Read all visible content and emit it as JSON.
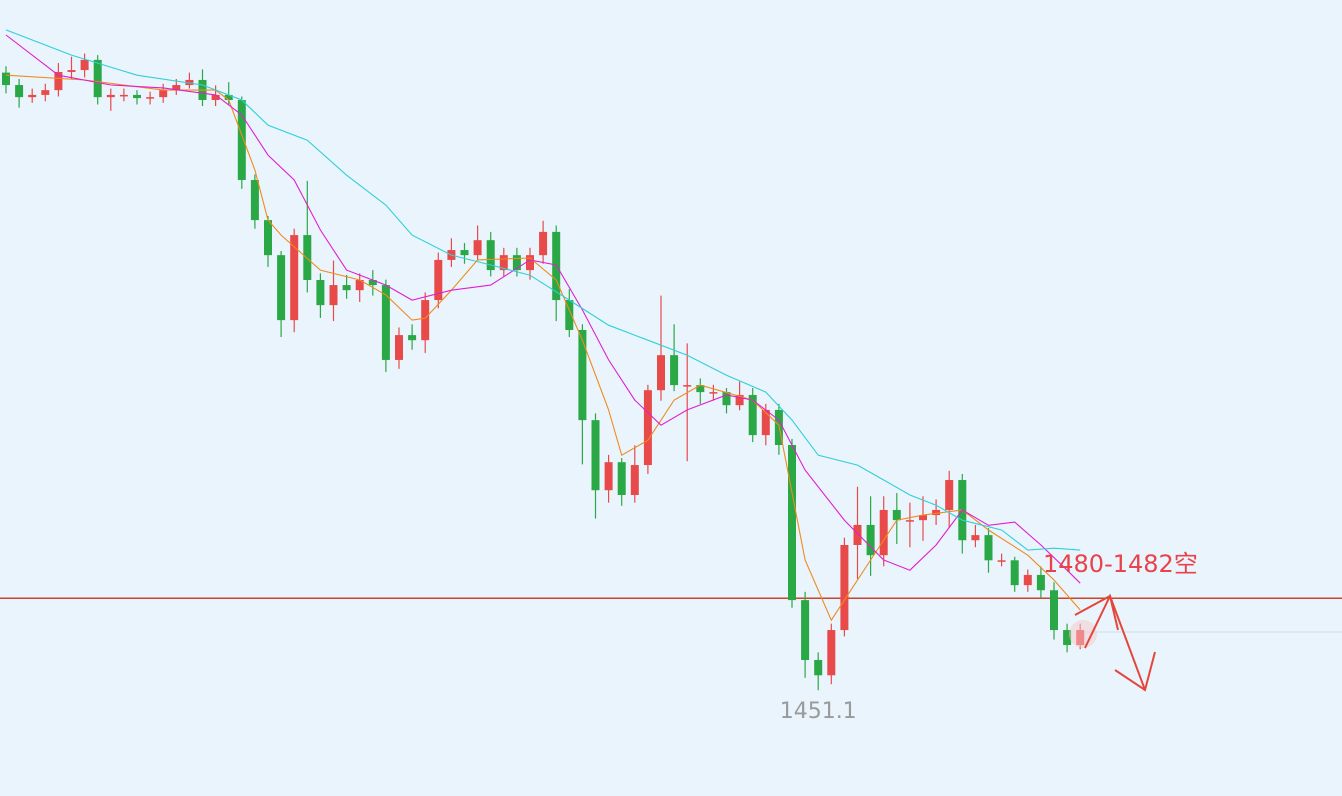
{
  "chart_data": {
    "type": "candlestick",
    "up_color": "#e84a4a",
    "down_color": "#2aa845",
    "ylim": [
      1417.9,
      1667.8
    ],
    "candles": {
      "open": [
        1645.0,
        1641.1,
        1637.3,
        1638.0,
        1639.5,
        1645.2,
        1645.8,
        1649.0,
        1637.3,
        1638.0,
        1638.0,
        1637.0,
        1637.3,
        1639.5,
        1641.1,
        1642.7,
        1636.4,
        1638.0,
        1636.4,
        1611.3,
        1598.7,
        1587.7,
        1567.3,
        1594.0,
        1579.9,
        1572.0,
        1578.3,
        1576.7,
        1579.9,
        1578.3,
        1554.8,
        1562.6,
        1561.0,
        1573.6,
        1586.2,
        1589.3,
        1587.7,
        1592.4,
        1583.0,
        1587.7,
        1583.0,
        1587.7,
        1595.0,
        1573.6,
        1564.2,
        1535.9,
        1513.9,
        1522.7,
        1512.4,
        1521.8,
        1545.3,
        1556.3,
        1546.9,
        1546.9,
        1544.7,
        1544.7,
        1540.6,
        1543.8,
        1531.2,
        1539.1,
        1528.1,
        1479.4,
        1460.6,
        1455.8,
        1470.0,
        1496.7,
        1503.0,
        1493.5,
        1507.7,
        1504.5,
        1504.5,
        1506.1,
        1507.7,
        1517.1,
        1498.2,
        1499.8,
        1491.9,
        1491.9,
        1484.1,
        1487.3,
        1482.5,
        1470.0,
        1465.3
      ],
      "close": [
        1641.1,
        1637.3,
        1638.0,
        1639.5,
        1645.2,
        1645.8,
        1649.0,
        1637.3,
        1638.0,
        1638.0,
        1637.0,
        1637.3,
        1639.5,
        1641.1,
        1642.7,
        1636.4,
        1638.0,
        1636.4,
        1611.3,
        1598.7,
        1587.7,
        1567.3,
        1594.0,
        1579.9,
        1572.0,
        1578.3,
        1576.7,
        1579.9,
        1578.3,
        1554.8,
        1562.6,
        1561.0,
        1573.6,
        1586.2,
        1589.3,
        1587.7,
        1592.4,
        1583.0,
        1587.7,
        1583.0,
        1587.7,
        1595.0,
        1573.6,
        1564.2,
        1535.9,
        1513.9,
        1522.7,
        1512.4,
        1521.8,
        1545.3,
        1556.3,
        1546.9,
        1546.9,
        1544.7,
        1544.7,
        1540.6,
        1543.8,
        1531.2,
        1539.1,
        1528.1,
        1479.4,
        1460.6,
        1455.8,
        1470.0,
        1496.7,
        1503.0,
        1493.5,
        1507.7,
        1504.5,
        1504.5,
        1506.1,
        1507.7,
        1517.1,
        1498.2,
        1499.8,
        1491.9,
        1491.9,
        1484.1,
        1487.3,
        1482.5,
        1470.0,
        1465.3,
        1470.0
      ],
      "high": [
        1647,
        1643,
        1640,
        1641.5,
        1648,
        1650,
        1651,
        1650.5,
        1640,
        1640,
        1639.5,
        1639,
        1641.5,
        1643,
        1645,
        1646,
        1641,
        1642,
        1637.5,
        1613,
        1600,
        1589,
        1596,
        1611,
        1582,
        1586,
        1581.5,
        1582,
        1583,
        1580,
        1565,
        1566,
        1576,
        1588.5,
        1593,
        1591.5,
        1597,
        1595,
        1590,
        1590,
        1590,
        1598.5,
        1597,
        1577,
        1566,
        1538,
        1525,
        1524,
        1528,
        1547,
        1575,
        1566,
        1560,
        1549,
        1547,
        1546,
        1548,
        1546,
        1541,
        1541,
        1530,
        1482,
        1463,
        1472,
        1499,
        1515,
        1512,
        1512,
        1513,
        1510,
        1512,
        1511,
        1520,
        1519,
        1503,
        1502,
        1494,
        1493,
        1489,
        1490,
        1485,
        1472,
        1472
      ],
      "low": [
        1638.5,
        1634,
        1635.5,
        1636,
        1637.5,
        1643,
        1643.5,
        1635,
        1633,
        1636,
        1635,
        1635,
        1635.5,
        1638,
        1640,
        1634.5,
        1634.5,
        1635,
        1608.5,
        1596,
        1584,
        1562,
        1563.5,
        1576,
        1568,
        1567,
        1574,
        1573,
        1575,
        1551,
        1552,
        1558,
        1557,
        1571,
        1584,
        1585,
        1586,
        1581,
        1581,
        1581,
        1580,
        1585,
        1567,
        1562,
        1522,
        1505,
        1510,
        1509,
        1510,
        1519,
        1542,
        1545,
        1523,
        1541,
        1542,
        1538,
        1539,
        1529,
        1528,
        1525,
        1477,
        1455,
        1451.1,
        1453,
        1468,
        1486,
        1487,
        1490,
        1497,
        1496,
        1498,
        1503,
        1502,
        1494,
        1496,
        1488,
        1490,
        1482,
        1482,
        1480,
        1467,
        1463,
        1464
      ]
    },
    "lines": [
      {
        "color": "#f08a1c",
        "x": [
          0,
          6,
          12,
          16,
          17,
          19,
          20,
          21,
          24,
          27,
          29,
          31,
          32,
          34,
          36,
          40,
          42,
          44,
          46,
          47,
          49,
          51,
          53,
          57,
          59,
          61,
          63,
          64,
          66,
          68,
          70,
          73,
          75,
          78,
          80,
          82
        ],
        "values": [
          1644.2,
          1642.7,
          1639.5,
          1639.5,
          1636.4,
          1614.4,
          1598.7,
          1594.0,
          1583.0,
          1579.9,
          1575.2,
          1567.3,
          1567.9,
          1576.7,
          1586.2,
          1586.8,
          1579.9,
          1561.0,
          1539.1,
          1524.9,
          1529.6,
          1542.2,
          1546.9,
          1542.2,
          1534.3,
          1492.0,
          1473.1,
          1479.4,
          1492.0,
          1504.5,
          1506.1,
          1507.7,
          1501.4,
          1493.5,
          1485.7,
          1476.3
        ]
      },
      {
        "color": "#e020d0",
        "x": [
          0,
          4,
          8,
          12,
          16,
          18,
          20,
          22,
          24,
          26,
          29,
          31,
          34,
          37,
          40,
          42,
          44,
          46,
          48,
          50,
          52,
          55,
          57,
          59,
          61,
          64,
          67,
          69,
          71,
          73,
          75,
          77,
          79,
          81,
          82
        ],
        "values": [
          1656.8,
          1644.2,
          1641.1,
          1640.2,
          1638.0,
          1631.7,
          1619.1,
          1611.3,
          1595.6,
          1583.0,
          1578.3,
          1573.6,
          1576.7,
          1578.3,
          1586.2,
          1584.6,
          1570.5,
          1554.8,
          1542.2,
          1534.3,
          1539.1,
          1543.8,
          1542.2,
          1535.9,
          1520.2,
          1504.5,
          1492.0,
          1488.8,
          1496.7,
          1507.7,
          1502.9,
          1503.9,
          1496.7,
          1488.8,
          1484.7
        ]
      },
      {
        "color": "#2fd0d8",
        "x": [
          0,
          5,
          10,
          15,
          18,
          20,
          23,
          26,
          29,
          31,
          34,
          37,
          40,
          43,
          46,
          49,
          52,
          55,
          58,
          60,
          62,
          65,
          67,
          69,
          71,
          73,
          76,
          78,
          80,
          82
        ],
        "values": [
          1658.4,
          1650.5,
          1644.2,
          1641.1,
          1636.4,
          1628.5,
          1623.8,
          1612.8,
          1603.4,
          1594.0,
          1587.7,
          1584.6,
          1581.4,
          1573.6,
          1565.7,
          1561.0,
          1556.3,
          1550.0,
          1544.7,
          1535.9,
          1524.9,
          1521.8,
          1517.1,
          1512.4,
          1509.2,
          1504.5,
          1501.4,
          1495.1,
          1495.7,
          1495.1
        ]
      }
    ],
    "hline": {
      "value": 1480.0,
      "color": "#c8452e"
    },
    "annotation": "1480-1482空"
  }
}
